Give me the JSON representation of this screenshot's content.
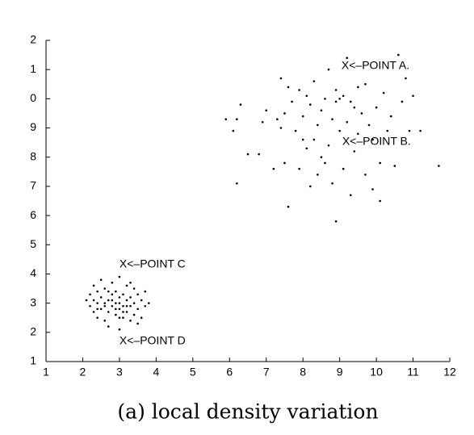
{
  "chart_data": {
    "type": "scatter",
    "caption": "(a) local density variation",
    "xlim": [
      1,
      12
    ],
    "ylim": [
      1,
      12
    ],
    "xticks": [
      1,
      2,
      3,
      4,
      5,
      6,
      7,
      8,
      9,
      10,
      11,
      12
    ],
    "yticks": [
      1,
      2,
      3,
      4,
      5,
      6,
      7,
      8,
      9,
      {
        "value": 10,
        "label": "0"
      },
      {
        "value": 11,
        "label": "1"
      },
      {
        "value": 12,
        "label": "2"
      }
    ],
    "grid": false,
    "series": [
      {
        "color": "#000000",
        "x": [
          5.9,
          6.1,
          6.2,
          6.2,
          6.3,
          6.5,
          6.8,
          6.9,
          7.0,
          7.2,
          7.3,
          7.4,
          7.4,
          7.5,
          7.6,
          7.6,
          7.7,
          7.8,
          7.9,
          7.9,
          8.0,
          8.1,
          8.1,
          8.2,
          8.2,
          8.3,
          8.3,
          8.4,
          8.4,
          8.5,
          8.5,
          8.6,
          8.6,
          8.7,
          8.7,
          8.8,
          8.8,
          8.9,
          8.9,
          9.0,
          9.0,
          9.1,
          9.1,
          9.2,
          9.2,
          9.3,
          9.3,
          9.4,
          9.5,
          9.5,
          9.6,
          9.7,
          9.7,
          9.8,
          9.9,
          9.9,
          10.0,
          10.1,
          10.1,
          10.2,
          10.3,
          10.4,
          10.5,
          10.6,
          10.7,
          10.8,
          10.9,
          11.0,
          11.2,
          11.7,
          8.0,
          8.9,
          9.4,
          7.5,
          2.1,
          2.2,
          2.2,
          2.3,
          2.3,
          2.4,
          2.4,
          2.4,
          2.5,
          2.5,
          2.5,
          2.6,
          2.6,
          2.6,
          2.7,
          2.7,
          2.7,
          2.8,
          2.8,
          2.8,
          2.9,
          2.9,
          2.9,
          3.0,
          3.0,
          3.0,
          3.0,
          3.1,
          3.1,
          3.1,
          3.2,
          3.2,
          3.2,
          3.3,
          3.3,
          3.3,
          3.4,
          3.4,
          3.4,
          3.5,
          3.5,
          3.6,
          3.6,
          3.7,
          3.7,
          3.8,
          2.6,
          2.8,
          3.0,
          3.1,
          2.9,
          3.2,
          2.7,
          3.3,
          2.4,
          3.5,
          2.3,
          3.0
        ],
        "values": [
          9.3,
          8.9,
          9.3,
          7.1,
          9.8,
          8.1,
          8.1,
          9.2,
          9.6,
          7.6,
          9.3,
          9.0,
          10.7,
          7.8,
          6.3,
          10.4,
          9.9,
          8.9,
          7.6,
          10.3,
          9.4,
          8.3,
          10.1,
          7.0,
          9.8,
          8.6,
          10.6,
          9.1,
          7.4,
          8.0,
          9.6,
          7.8,
          10.0,
          8.4,
          11.0,
          9.3,
          7.1,
          5.8,
          9.9,
          8.9,
          10.0,
          10.1,
          7.6,
          9.2,
          11.4,
          9.9,
          6.7,
          8.2,
          10.4,
          8.8,
          9.5,
          7.4,
          10.5,
          9.1,
          8.6,
          6.9,
          9.7,
          7.8,
          6.5,
          10.2,
          8.9,
          9.4,
          7.7,
          11.5,
          9.9,
          10.7,
          8.9,
          10.1,
          8.9,
          7.7,
          8.6,
          10.3,
          9.7,
          9.5,
          3.1,
          2.9,
          3.3,
          2.7,
          3.6,
          3.0,
          2.5,
          3.4,
          2.8,
          3.2,
          3.8,
          2.4,
          3.0,
          3.5,
          2.7,
          3.1,
          2.2,
          2.9,
          3.3,
          3.7,
          2.6,
          3.0,
          3.4,
          2.8,
          3.2,
          2.1,
          3.9,
          2.5,
          2.9,
          3.3,
          2.7,
          3.1,
          3.6,
          2.4,
          2.9,
          3.2,
          2.6,
          3.0,
          3.5,
          2.8,
          3.3,
          2.5,
          3.1,
          2.9,
          3.4,
          3.0,
          2.9,
          3.1,
          3.0,
          2.7,
          2.8,
          2.9,
          3.4,
          3.7,
          2.8,
          2.3,
          3.1,
          2.5
        ]
      }
    ],
    "annotations": [
      {
        "text": "X<–POINT A.",
        "x": 9.05,
        "y": 11.12
      },
      {
        "text": "X<–POINT B.",
        "x": 9.07,
        "y": 8.52
      },
      {
        "text": "X<–POINT C",
        "x": 3.0,
        "y": 4.32
      },
      {
        "text": "X<–POINT D",
        "x": 3.0,
        "y": 1.7
      }
    ]
  }
}
